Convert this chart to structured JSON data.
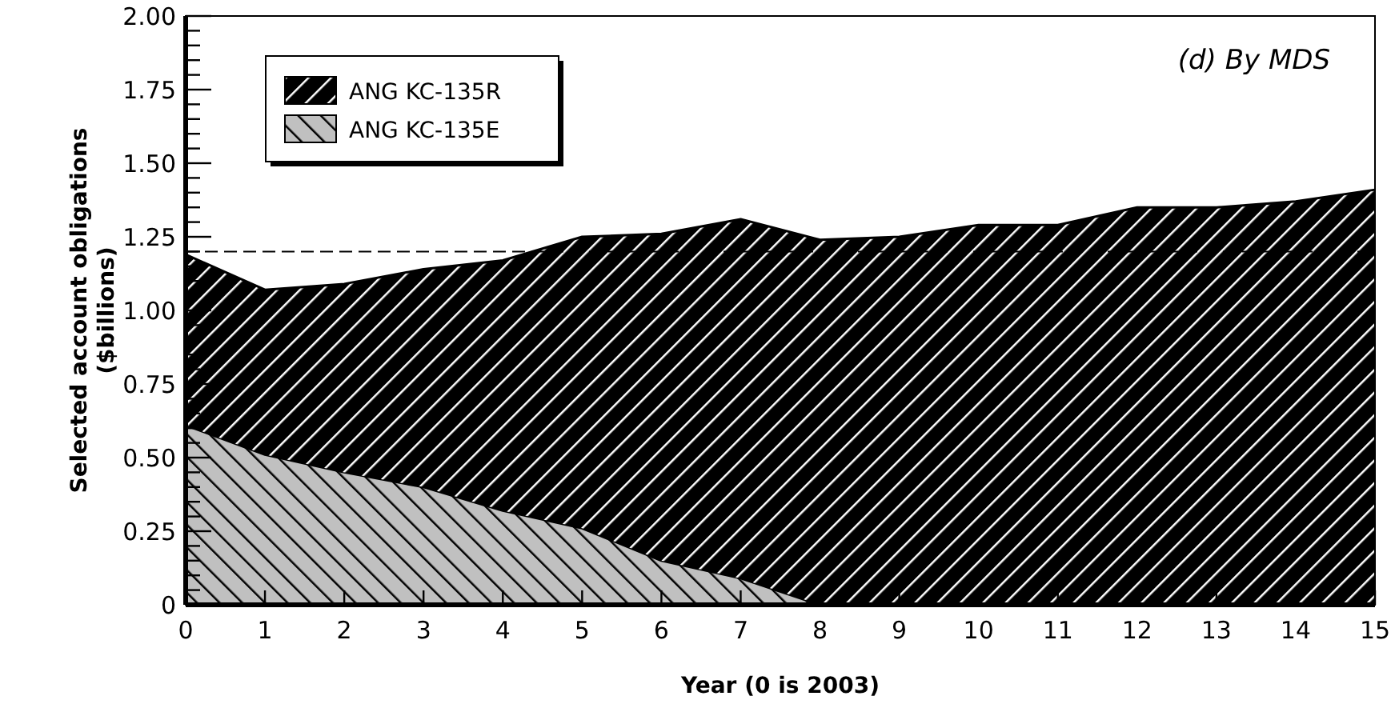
{
  "chart_data": {
    "type": "area",
    "stacked": true,
    "title": "(d) By MDS",
    "xlabel": "Year (0 is 2003)",
    "ylabel": "Selected account obligations\n($billions)",
    "x": [
      0,
      1,
      2,
      3,
      4,
      5,
      6,
      7,
      8,
      9,
      10,
      11,
      12,
      13,
      14,
      15
    ],
    "series": [
      {
        "name": "ANG KC-135E",
        "color": "#c0c0c0",
        "values": [
          0.61,
          0.51,
          0.45,
          0.4,
          0.32,
          0.26,
          0.15,
          0.09,
          0,
          0,
          0,
          0,
          0,
          0,
          0,
          0
        ]
      },
      {
        "name": "ANG KC-135R",
        "color": "#000000",
        "values": [
          0.58,
          0.56,
          0.64,
          0.74,
          0.85,
          0.99,
          1.11,
          1.22,
          1.24,
          1.25,
          1.29,
          1.29,
          1.35,
          1.35,
          1.37,
          1.41
        ]
      }
    ],
    "xlim": [
      0,
      15
    ],
    "xticks": [
      0,
      1,
      2,
      3,
      4,
      5,
      6,
      7,
      8,
      9,
      10,
      11,
      12,
      13,
      14,
      15
    ],
    "ylim": [
      0,
      2
    ],
    "yticks": [
      0,
      {
        "value": 0.05,
        "label": null
      },
      {
        "value": 0.1,
        "label": null
      },
      {
        "value": 0.15,
        "label": null
      },
      {
        "value": 0.2,
        "label": null
      },
      0.25,
      {
        "value": 0.3,
        "label": null
      },
      {
        "value": 0.35,
        "label": null
      },
      {
        "value": 0.4,
        "label": null
      },
      {
        "value": 0.45,
        "label": null
      },
      {
        "value": 0.5,
        "label": "0.50"
      },
      {
        "value": 0.55,
        "label": null
      },
      {
        "value": 0.6,
        "label": null
      },
      {
        "value": 0.65,
        "label": null
      },
      {
        "value": 0.7,
        "label": null
      },
      0.75,
      {
        "value": 0.8,
        "label": null
      },
      {
        "value": 0.85,
        "label": null
      },
      {
        "value": 0.9,
        "label": null
      },
      {
        "value": 0.95,
        "label": null
      },
      {
        "value": 1,
        "label": "1.00"
      },
      {
        "value": 1.05,
        "label": null
      },
      {
        "value": 1.1,
        "label": null
      },
      {
        "value": 1.15,
        "label": null
      },
      {
        "value": 1.2,
        "label": null
      },
      1.25,
      {
        "value": 1.3,
        "label": null
      },
      {
        "value": 1.35,
        "label": null
      },
      {
        "value": 1.4,
        "label": null
      },
      {
        "value": 1.45,
        "label": null
      },
      {
        "value": 1.5,
        "label": "1.50"
      },
      {
        "value": 1.55,
        "label": null
      },
      {
        "value": 1.6,
        "label": null
      },
      {
        "value": 1.65,
        "label": null
      },
      {
        "value": 1.7,
        "label": null
      },
      1.75,
      {
        "value": 1.8,
        "label": null
      },
      {
        "value": 1.85,
        "label": null
      },
      {
        "value": 1.9,
        "label": null
      },
      {
        "value": 1.95,
        "label": null
      },
      {
        "value": 2,
        "label": "2.00"
      }
    ],
    "ref_lines": [
      {
        "axis": "y",
        "value": 1.2,
        "line_style": "dashed"
      }
    ],
    "legend": "top left",
    "grid": false
  }
}
